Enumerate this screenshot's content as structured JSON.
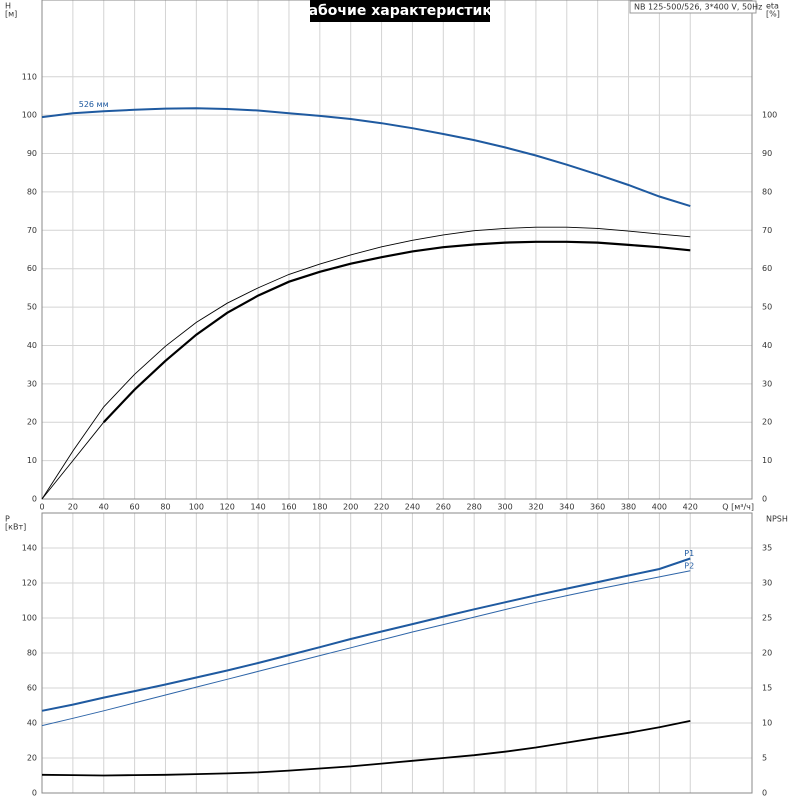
{
  "chart_data": [
    {
      "type": "line",
      "title": "Рабочие характеристики",
      "subtitle": "NB 125-500/526, 3*400 V, 50Hz",
      "ylabel": "H",
      "yunit": "[м]",
      "y2label": "eta",
      "y2unit": "[%]",
      "xlabel": "Q [м³/ч]",
      "x": [
        0,
        20,
        40,
        60,
        80,
        100,
        120,
        140,
        160,
        180,
        200,
        220,
        240,
        260,
        280,
        300,
        320,
        340,
        360,
        380,
        400,
        420
      ],
      "xlim": [
        0,
        460
      ],
      "xticks": [
        0,
        20,
        40,
        60,
        80,
        100,
        120,
        140,
        160,
        180,
        200,
        220,
        240,
        260,
        280,
        300,
        320,
        340,
        360,
        380,
        400,
        420
      ],
      "ylim": [
        0,
        130
      ],
      "yticks": [
        0,
        10,
        20,
        30,
        40,
        50,
        60,
        70,
        80,
        90,
        100,
        110
      ],
      "y2lim": [
        0,
        130
      ],
      "y2ticks": [
        0,
        10,
        20,
        30,
        40,
        50,
        60,
        70,
        80,
        90,
        100
      ],
      "grid": true,
      "series": [
        {
          "label": "526 мм",
          "color": "#1f5aa0",
          "width": 2,
          "values": [
            99.5,
            100.5,
            101,
            101.4,
            101.7,
            101.8,
            101.6,
            101.2,
            100.5,
            99.8,
            99,
            97.9,
            96.6,
            95.1,
            93.5,
            91.6,
            89.5,
            87.1,
            84.5,
            81.8,
            78.8,
            76.3
          ]
        },
        {
          "axis": "y2",
          "color": "#000000",
          "width": 2.2,
          "values": [
            null,
            null,
            20,
            28.5,
            36,
            42.8,
            48.5,
            53,
            56.6,
            59.2,
            61.3,
            63,
            64.5,
            65.6,
            66.3,
            66.8,
            67,
            67,
            66.8,
            66.2,
            65.6,
            64.8
          ]
        },
        {
          "axis": "y2",
          "color": "#000000",
          "width": 0.9,
          "values": [
            0,
            12.5,
            24,
            32.5,
            39.8,
            46,
            51,
            55,
            58.5,
            61.2,
            63.6,
            65.7,
            67.4,
            68.8,
            69.9,
            70.5,
            70.8,
            70.8,
            70.5,
            69.8,
            69,
            68.3
          ]
        },
        {
          "axis": "y2",
          "color": "#000000",
          "width": 0.9,
          "values": [
            0,
            10,
            20,
            null,
            null,
            null,
            null,
            null,
            null,
            null,
            null,
            null,
            null,
            null,
            null,
            null,
            null,
            null,
            null,
            null,
            null,
            null
          ]
        }
      ]
    },
    {
      "type": "line",
      "ylabel": "P",
      "yunit": "[кВт]",
      "y2label": "NPSH",
      "x": [
        0,
        20,
        40,
        60,
        80,
        100,
        120,
        140,
        160,
        180,
        200,
        220,
        240,
        260,
        280,
        300,
        320,
        340,
        360,
        380,
        400,
        420
      ],
      "xlim": [
        0,
        460
      ],
      "xticks": [
        0,
        20,
        40,
        60,
        80,
        100,
        120,
        140,
        160,
        180,
        200,
        220,
        240,
        260,
        280,
        300,
        320,
        340,
        360,
        380,
        400,
        420
      ],
      "ylim": [
        0,
        160
      ],
      "yticks": [
        0,
        20,
        40,
        60,
        80,
        100,
        120,
        140
      ],
      "y2lim": [
        0,
        40
      ],
      "y2ticks": [
        0,
        5,
        10,
        15,
        20,
        25,
        30,
        35
      ],
      "grid": true,
      "series": [
        {
          "label": "P1",
          "color": "#1f5aa0",
          "width": 2,
          "values": [
            47,
            50.5,
            54.5,
            58.2,
            62,
            66,
            70,
            74.3,
            78.8,
            83.3,
            88,
            92.3,
            96.5,
            100.8,
            105,
            109,
            113,
            116.8,
            120.5,
            124.3,
            128,
            134
          ]
        },
        {
          "label": "P2",
          "color": "#2e65a8",
          "width": 1,
          "values": [
            38.5,
            42.7,
            47,
            51.5,
            56,
            60.5,
            65,
            69.5,
            74,
            78.5,
            83,
            87.5,
            92,
            96.2,
            100.5,
            104.8,
            109,
            112.8,
            116.5,
            120,
            123.5,
            127
          ]
        },
        {
          "axis": "y2",
          "color": "#000000",
          "width": 1.8,
          "values": [
            2.6,
            2.55,
            2.5,
            2.55,
            2.6,
            2.7,
            2.8,
            2.95,
            3.2,
            3.5,
            3.8,
            4.2,
            4.6,
            5,
            5.4,
            5.9,
            6.5,
            7.2,
            7.9,
            8.6,
            9.4,
            10.3
          ]
        }
      ]
    }
  ]
}
